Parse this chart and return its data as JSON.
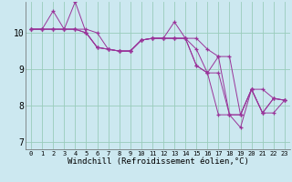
{
  "background_color": "#cce8f0",
  "plot_bg_color": "#cce8f0",
  "grid_color": "#99ccbb",
  "line_color": "#993399",
  "marker": "+",
  "xlabel": "Windchill (Refroidissement éolien,°C)",
  "xlabel_fontsize": 6.5,
  "xlim": [
    -0.5,
    23.5
  ],
  "ylim": [
    6.8,
    10.85
  ],
  "yticks": [
    7,
    8,
    9,
    10
  ],
  "xticks": [
    0,
    1,
    2,
    3,
    4,
    5,
    6,
    7,
    8,
    9,
    10,
    11,
    12,
    13,
    14,
    15,
    16,
    17,
    18,
    19,
    20,
    21,
    22,
    23
  ],
  "series": [
    [
      10.1,
      10.1,
      10.1,
      10.1,
      10.1,
      10.1,
      10.0,
      9.55,
      9.5,
      9.5,
      9.8,
      9.85,
      9.85,
      10.3,
      9.85,
      9.85,
      9.55,
      9.35,
      9.35,
      7.75,
      8.45,
      8.45,
      8.2,
      8.15
    ],
    [
      10.1,
      10.1,
      10.6,
      10.1,
      10.1,
      10.0,
      9.6,
      9.55,
      9.5,
      9.5,
      9.8,
      9.85,
      9.85,
      9.85,
      9.85,
      9.55,
      8.9,
      9.35,
      7.75,
      7.75,
      8.45,
      7.8,
      8.2,
      8.15
    ],
    [
      10.1,
      10.1,
      10.1,
      10.1,
      10.85,
      10.0,
      9.6,
      9.55,
      9.5,
      9.5,
      9.8,
      9.85,
      9.85,
      9.85,
      9.85,
      9.1,
      8.9,
      8.9,
      7.75,
      7.75,
      8.45,
      7.8,
      8.2,
      8.15
    ],
    [
      10.1,
      10.1,
      10.1,
      10.1,
      10.1,
      10.0,
      9.6,
      9.55,
      9.5,
      9.5,
      9.8,
      9.85,
      9.85,
      9.85,
      9.85,
      9.1,
      8.9,
      7.75,
      7.75,
      7.4,
      8.45,
      7.8,
      7.8,
      8.15
    ]
  ]
}
